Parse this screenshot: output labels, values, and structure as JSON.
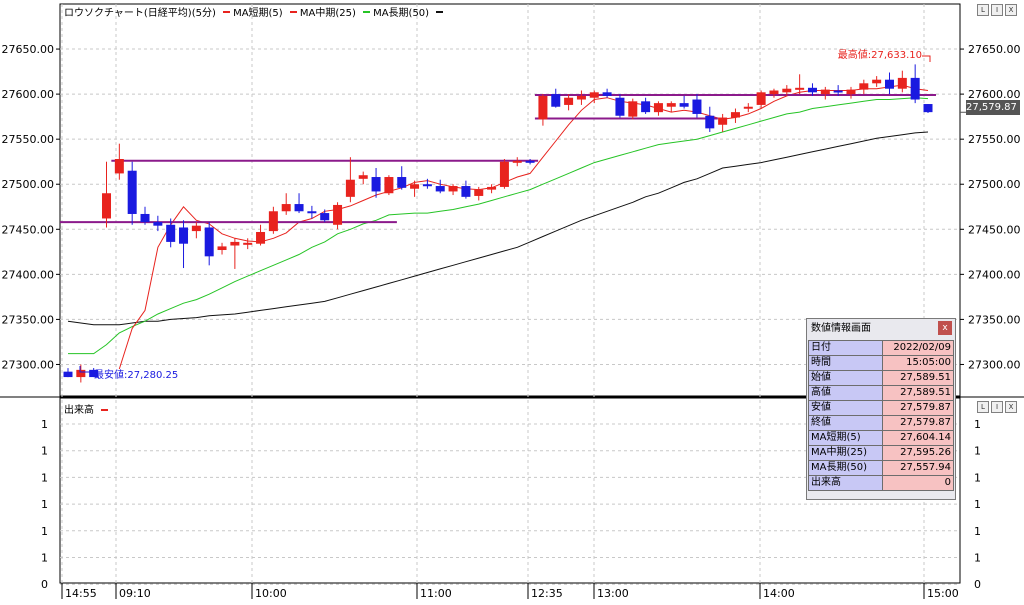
{
  "chart_title": "ロウソクチャート(日経平均)(5分)",
  "legend": [
    {
      "label": "MA短期(5)",
      "color": "#e8231e"
    },
    {
      "label": "MA中期(25)",
      "color": "#26c426"
    },
    {
      "label": "MA長期(50)",
      "color": "#111111"
    }
  ],
  "volume_label": "出来高",
  "window_buttons": [
    "L",
    "I",
    "X"
  ],
  "current_price_label": "27,579.87",
  "annotations": {
    "high": "最高値:27,633.10",
    "low": "最安値:27,280.25"
  },
  "info_panel": {
    "title": "数値情報画面",
    "close": "x",
    "rows": [
      {
        "key": "日付",
        "value": "2022/02/09"
      },
      {
        "key": "時間",
        "value": "15:05:00"
      },
      {
        "key": "始値",
        "value": "27,589.51"
      },
      {
        "key": "高値",
        "value": "27,589.51"
      },
      {
        "key": "安値",
        "value": "27,579.87"
      },
      {
        "key": "終値",
        "value": "27,579.87"
      },
      {
        "key": "MA短期(5)",
        "value": "27,604.14"
      },
      {
        "key": "MA中期(25)",
        "value": "27,595.26"
      },
      {
        "key": "MA長期(50)",
        "value": "27,557.94"
      },
      {
        "key": "出来高",
        "value": "0"
      }
    ]
  },
  "colors": {
    "up": "#e8231e",
    "down": "#1a1ae0",
    "short": "#e8231e",
    "mid": "#26c426",
    "long": "#111111",
    "hline": "#8b1a8b"
  },
  "chart_data": {
    "type": "candlestick",
    "price_axis": {
      "ticks": [
        "27650.00",
        "27600.00",
        "27550.00",
        "27500.00",
        "27450.00",
        "27400.00",
        "27350.00",
        "27300.00"
      ],
      "ylim": [
        27265,
        27700
      ]
    },
    "volume_axis": {
      "ticks": [
        "1",
        "1",
        "1",
        "1",
        "1",
        "1",
        "0",
        "0"
      ]
    },
    "x_tick_labels": [
      "14:55",
      "09:10",
      "10:00",
      "11:00",
      "12:35",
      "13:00",
      "14:00",
      "15:00"
    ],
    "candles": [
      {
        "o": 27292,
        "h": 27296,
        "l": 27286,
        "c": 27286
      },
      {
        "o": 27286,
        "h": 27300,
        "l": 27280,
        "c": 27294
      },
      {
        "o": 27294,
        "h": 27296,
        "l": 27286,
        "c": 27286
      },
      {
        "o": 27462,
        "h": 27525,
        "l": 27452,
        "c": 27490
      },
      {
        "o": 27512,
        "h": 27545,
        "l": 27505,
        "c": 27528
      },
      {
        "o": 27515,
        "h": 27525,
        "l": 27455,
        "c": 27467
      },
      {
        "o": 27467,
        "h": 27475,
        "l": 27455,
        "c": 27458
      },
      {
        "o": 27458,
        "h": 27465,
        "l": 27448,
        "c": 27454
      },
      {
        "o": 27455,
        "h": 27462,
        "l": 27430,
        "c": 27436
      },
      {
        "o": 27452,
        "h": 27460,
        "l": 27407,
        "c": 27434
      },
      {
        "o": 27448,
        "h": 27458,
        "l": 27440,
        "c": 27454
      },
      {
        "o": 27452,
        "h": 27458,
        "l": 27410,
        "c": 27420
      },
      {
        "o": 27427,
        "h": 27435,
        "l": 27422,
        "c": 27431
      },
      {
        "o": 27432,
        "h": 27440,
        "l": 27406,
        "c": 27436
      },
      {
        "o": 27433,
        "h": 27440,
        "l": 27428,
        "c": 27435
      },
      {
        "o": 27434,
        "h": 27455,
        "l": 27432,
        "c": 27447
      },
      {
        "o": 27448,
        "h": 27475,
        "l": 27445,
        "c": 27470
      },
      {
        "o": 27470,
        "h": 27490,
        "l": 27466,
        "c": 27478
      },
      {
        "o": 27478,
        "h": 27490,
        "l": 27468,
        "c": 27470
      },
      {
        "o": 27470,
        "h": 27476,
        "l": 27462,
        "c": 27468
      },
      {
        "o": 27468,
        "h": 27472,
        "l": 27458,
        "c": 27460
      },
      {
        "o": 27455,
        "h": 27480,
        "l": 27450,
        "c": 27477
      },
      {
        "o": 27486,
        "h": 27530,
        "l": 27480,
        "c": 27505
      },
      {
        "o": 27506,
        "h": 27514,
        "l": 27500,
        "c": 27510
      },
      {
        "o": 27508,
        "h": 27518,
        "l": 27485,
        "c": 27492
      },
      {
        "o": 27490,
        "h": 27510,
        "l": 27488,
        "c": 27508
      },
      {
        "o": 27508,
        "h": 27520,
        "l": 27494,
        "c": 27496
      },
      {
        "o": 27495,
        "h": 27504,
        "l": 27486,
        "c": 27500
      },
      {
        "o": 27500,
        "h": 27506,
        "l": 27495,
        "c": 27498
      },
      {
        "o": 27498,
        "h": 27505,
        "l": 27490,
        "c": 27492
      },
      {
        "o": 27492,
        "h": 27500,
        "l": 27488,
        "c": 27498
      },
      {
        "o": 27498,
        "h": 27504,
        "l": 27484,
        "c": 27486
      },
      {
        "o": 27487,
        "h": 27497,
        "l": 27482,
        "c": 27494
      },
      {
        "o": 27494,
        "h": 27500,
        "l": 27490,
        "c": 27497
      },
      {
        "o": 27497,
        "h": 27528,
        "l": 27495,
        "c": 27525
      },
      {
        "o": 27525,
        "h": 27530,
        "l": 27520,
        "c": 27526
      },
      {
        "o": 27526,
        "h": 27528,
        "l": 27522,
        "c": 27524
      },
      {
        "o": 27572,
        "h": 27600,
        "l": 27565,
        "c": 27598
      },
      {
        "o": 27600,
        "h": 27606,
        "l": 27585,
        "c": 27586
      },
      {
        "o": 27588,
        "h": 27600,
        "l": 27582,
        "c": 27596
      },
      {
        "o": 27594,
        "h": 27604,
        "l": 27588,
        "c": 27598
      },
      {
        "o": 27596,
        "h": 27604,
        "l": 27590,
        "c": 27602
      },
      {
        "o": 27602,
        "h": 27606,
        "l": 27596,
        "c": 27598
      },
      {
        "o": 27596,
        "h": 27600,
        "l": 27574,
        "c": 27576
      },
      {
        "o": 27575,
        "h": 27595,
        "l": 27572,
        "c": 27592
      },
      {
        "o": 27592,
        "h": 27596,
        "l": 27578,
        "c": 27580
      },
      {
        "o": 27580,
        "h": 27592,
        "l": 27576,
        "c": 27590
      },
      {
        "o": 27586,
        "h": 27592,
        "l": 27580,
        "c": 27590
      },
      {
        "o": 27590,
        "h": 27598,
        "l": 27584,
        "c": 27586
      },
      {
        "o": 27594,
        "h": 27600,
        "l": 27574,
        "c": 27578
      },
      {
        "o": 27576,
        "h": 27586,
        "l": 27558,
        "c": 27562
      },
      {
        "o": 27566,
        "h": 27578,
        "l": 27558,
        "c": 27574
      },
      {
        "o": 27574,
        "h": 27584,
        "l": 27568,
        "c": 27580
      },
      {
        "o": 27584,
        "h": 27590,
        "l": 27580,
        "c": 27586
      },
      {
        "o": 27588,
        "h": 27604,
        "l": 27584,
        "c": 27602
      },
      {
        "o": 27600,
        "h": 27606,
        "l": 27596,
        "c": 27604
      },
      {
        "o": 27602,
        "h": 27610,
        "l": 27598,
        "c": 27606
      },
      {
        "o": 27605,
        "h": 27622,
        "l": 27600,
        "c": 27607
      },
      {
        "o": 27607,
        "h": 27612,
        "l": 27598,
        "c": 27602
      },
      {
        "o": 27600,
        "h": 27608,
        "l": 27594,
        "c": 27605
      },
      {
        "o": 27604,
        "h": 27610,
        "l": 27598,
        "c": 27602
      },
      {
        "o": 27600,
        "h": 27608,
        "l": 27595,
        "c": 27605
      },
      {
        "o": 27605,
        "h": 27616,
        "l": 27600,
        "c": 27612
      },
      {
        "o": 27612,
        "h": 27620,
        "l": 27608,
        "c": 27616
      },
      {
        "o": 27616,
        "h": 27624,
        "l": 27600,
        "c": 27606
      },
      {
        "o": 27606,
        "h": 27626,
        "l": 27602,
        "c": 27618
      },
      {
        "o": 27618,
        "h": 27633,
        "l": 27590,
        "c": 27594
      },
      {
        "o": 27589,
        "h": 27589,
        "l": 27579,
        "c": 27580
      }
    ],
    "ma_short": [
      null,
      null,
      null,
      null,
      27295,
      27340,
      27360,
      27430,
      27455,
      27475,
      27460,
      27456,
      27445,
      27440,
      27437,
      27436,
      27440,
      27446,
      27458,
      27462,
      27470,
      27472,
      27476,
      27482,
      27488,
      27492,
      27496,
      27502,
      27504,
      27500,
      27497,
      27495,
      27494,
      27496,
      27502,
      27508,
      27512,
      27530,
      27548,
      27566,
      27582,
      27594,
      27596,
      27592,
      27590,
      27588,
      27584,
      27580,
      27582,
      27580,
      27576,
      27572,
      27574,
      27578,
      27584,
      27592,
      27598,
      27602,
      27604,
      27604,
      27604,
      27604,
      27606,
      27606,
      27608,
      27610,
      27606,
      27604
    ],
    "ma_mid": [
      27312,
      27312,
      27312,
      27322,
      27335,
      27342,
      27348,
      27356,
      27362,
      27368,
      27372,
      27378,
      27385,
      27392,
      27398,
      27404,
      27410,
      27416,
      27422,
      27430,
      27436,
      27445,
      27450,
      27456,
      27460,
      27466,
      27467,
      27468,
      27468,
      27470,
      27472,
      27475,
      27478,
      27482,
      27486,
      27490,
      27494,
      27500,
      27506,
      27512,
      27518,
      27524,
      27528,
      27532,
      27536,
      27540,
      27544,
      27546,
      27548,
      27550,
      27554,
      27558,
      27562,
      27566,
      27570,
      27574,
      27578,
      27580,
      27584,
      27586,
      27588,
      27590,
      27592,
      27594,
      27594,
      27595,
      27596,
      27595
    ],
    "ma_long": [
      27348,
      27346,
      27344,
      27344,
      27344,
      27346,
      27348,
      27348,
      27350,
      27351,
      27352,
      27354,
      27355,
      27356,
      27358,
      27360,
      27362,
      27364,
      27366,
      27368,
      27370,
      27374,
      27378,
      27382,
      27386,
      27390,
      27394,
      27398,
      27402,
      27406,
      27410,
      27414,
      27418,
      27422,
      27426,
      27430,
      27436,
      27442,
      27448,
      27454,
      27460,
      27465,
      27470,
      27475,
      27480,
      27486,
      27490,
      27496,
      27502,
      27506,
      27512,
      27518,
      27520,
      27522,
      27524,
      27527,
      27530,
      27533,
      27536,
      27539,
      27542,
      27545,
      27548,
      27551,
      27553,
      27555,
      27557,
      27558
    ],
    "hlines": [
      {
        "y": 27458,
        "i0": 0,
        "i1": 25
      },
      {
        "y": 27526,
        "i0": 4,
        "i1": 36
      },
      {
        "y": 27599,
        "i0": 37,
        "i1": 67
      },
      {
        "y": 27573,
        "i0": 37,
        "i1": 50
      }
    ],
    "current_price": 27579.87
  }
}
